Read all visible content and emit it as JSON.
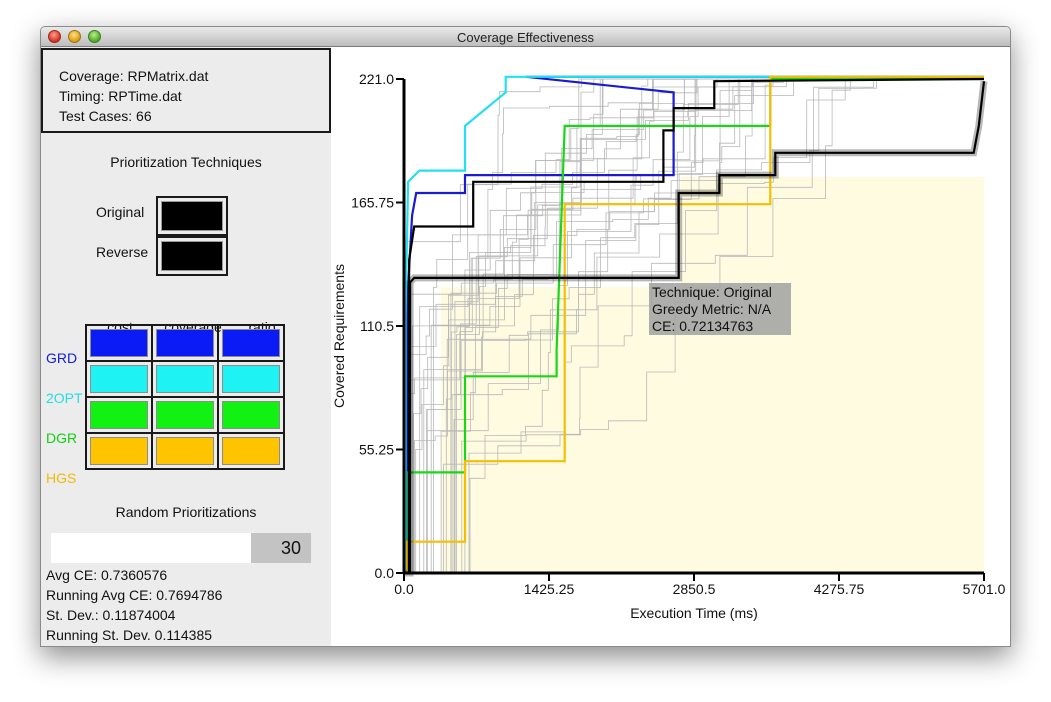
{
  "window": {
    "title": "Coverage Effectiveness"
  },
  "files": {
    "coverage": "Coverage: RPMatrix.dat",
    "timing": "Timing: RPTime.dat",
    "test_cases": "Test Cases: 66"
  },
  "prioritization": {
    "title": "Prioritization Techniques",
    "original_label": "Original",
    "reverse_label": "Reverse",
    "original_color": "#000000",
    "reverse_color": "#000000"
  },
  "grid": {
    "columns": [
      "cost",
      "coverage",
      "ratio"
    ],
    "rows": [
      {
        "label": "GRD",
        "color": "#0a1bf5"
      },
      {
        "label": "2OPT",
        "color": "#1ef2f2"
      },
      {
        "label": "DGR",
        "color": "#12f212"
      },
      {
        "label": "HGS",
        "color": "#ffc400"
      }
    ]
  },
  "random": {
    "title": "Random Prioritizations",
    "count": "30",
    "avg_ce": "Avg CE: 0.7360576",
    "running_avg_ce": "Running Avg CE: 0.7694786",
    "st_dev": "St. Dev.: 0.11874004",
    "running_st_dev": "Running St. Dev. 0.114385"
  },
  "tooltip": {
    "technique": "Technique: Original",
    "metric": "Greedy Metric: N/A",
    "ce": "CE: 0.72134763"
  },
  "chart_data": {
    "type": "line",
    "xlabel": "Execution Time (ms)",
    "ylabel": "Covered Requirements",
    "xlim": [
      0,
      5701.0
    ],
    "ylim": [
      0,
      221.0
    ],
    "xticks": [
      "0.0",
      "1425.25",
      "2850.5",
      "4275.75",
      "5701.0"
    ],
    "yticks": [
      "0.0",
      "55.25",
      "110.5",
      "165.75",
      "221.0"
    ],
    "series": [
      {
        "name": "GRD",
        "color": "#1a1ad0",
        "points": [
          [
            0,
            0
          ],
          [
            30,
            0
          ],
          [
            30,
            120
          ],
          [
            80,
            160
          ],
          [
            120,
            170
          ],
          [
            600,
            170
          ],
          [
            600,
            175
          ],
          [
            600,
            178
          ],
          [
            2650,
            178
          ],
          [
            2650,
            185
          ],
          [
            2650,
            215
          ],
          [
            1200,
            222
          ],
          [
            5701,
            222
          ]
        ]
      },
      {
        "name": "2OPT",
        "color": "#22e0f0",
        "points": [
          [
            0,
            0
          ],
          [
            15,
            0
          ],
          [
            15,
            115
          ],
          [
            40,
            175
          ],
          [
            150,
            180
          ],
          [
            600,
            180
          ],
          [
            600,
            200
          ],
          [
            1000,
            215
          ],
          [
            1000,
            222
          ],
          [
            5701,
            222
          ]
        ]
      },
      {
        "name": "DGR",
        "color": "#16d816",
        "points": [
          [
            0,
            0
          ],
          [
            40,
            0
          ],
          [
            40,
            45
          ],
          [
            600,
            45
          ],
          [
            600,
            88
          ],
          [
            1500,
            88
          ],
          [
            1500,
            100
          ],
          [
            1580,
            200
          ],
          [
            3600,
            200
          ],
          [
            3600,
            221
          ],
          [
            5701,
            221
          ]
        ]
      },
      {
        "name": "HGS",
        "color": "#f5be00",
        "points": [
          [
            0,
            0
          ],
          [
            30,
            0
          ],
          [
            30,
            14
          ],
          [
            600,
            14
          ],
          [
            600,
            50
          ],
          [
            1580,
            50
          ],
          [
            1580,
            165
          ],
          [
            3600,
            165
          ],
          [
            3600,
            222
          ],
          [
            5701,
            222
          ]
        ]
      },
      {
        "name": "Original",
        "color": "#000000",
        "points": [
          [
            0,
            0
          ],
          [
            60,
            0
          ],
          [
            60,
            130
          ],
          [
            100,
            132
          ],
          [
            2700,
            132
          ],
          [
            2700,
            170
          ],
          [
            3100,
            170
          ],
          [
            3100,
            178
          ],
          [
            3650,
            178
          ],
          [
            3650,
            188
          ],
          [
            4200,
            188
          ],
          [
            5600,
            188
          ],
          [
            5650,
            200
          ],
          [
            5701,
            220
          ]
        ]
      },
      {
        "name": "Reverse",
        "color": "#000000",
        "points": [
          [
            0,
            0
          ],
          [
            50,
            0
          ],
          [
            50,
            140
          ],
          [
            100,
            155
          ],
          [
            680,
            155
          ],
          [
            680,
            175
          ],
          [
            2550,
            175
          ],
          [
            2550,
            198
          ],
          [
            2650,
            198
          ],
          [
            2650,
            208
          ],
          [
            3050,
            208
          ],
          [
            3050,
            220
          ],
          [
            5701,
            221
          ]
        ]
      }
    ]
  }
}
